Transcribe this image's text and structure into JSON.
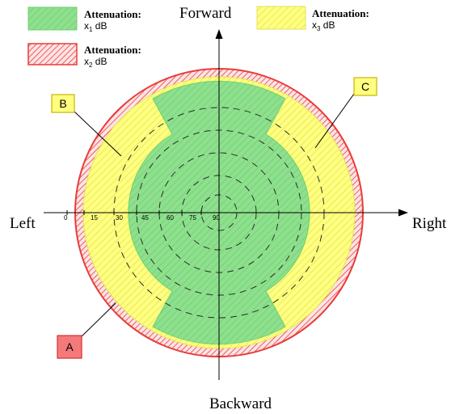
{
  "directions": {
    "forward": "Forward",
    "backward": "Backward",
    "left": "Left",
    "right": "Right"
  },
  "legend": [
    {
      "id": "x1",
      "title": "Attenuation:",
      "var": "x",
      "sub": "1",
      "unit": " dB",
      "fill": "#8ee08e",
      "hatch": "#5cc45c"
    },
    {
      "id": "x2",
      "title": "Attenuation:",
      "var": "x",
      "sub": "2",
      "unit": " dB",
      "fill": "#ffe4e4",
      "hatch": "#e83c3c"
    },
    {
      "id": "x3",
      "title": "Attenuation:",
      "var": "x",
      "sub": "3",
      "unit": " dB",
      "fill": "#ffff80",
      "hatch": "#d8d84a"
    }
  ],
  "ticks": [
    "0",
    "15",
    "30",
    "45",
    "60",
    "75",
    "90"
  ],
  "callouts": {
    "a": {
      "label": "A",
      "fill": "#f47a7a",
      "stroke": "#d43030"
    },
    "b": {
      "label": "B",
      "fill": "#ffff80",
      "stroke": "#c8b400"
    },
    "c": {
      "label": "C",
      "fill": "#ffff80",
      "stroke": "#c8b400"
    }
  },
  "colors": {
    "green_fill": "#8ee08e",
    "green_hatch": "#5cc45c",
    "yellow_fill": "#ffff80",
    "yellow_hatch": "#d8d84a",
    "red_ring": "#e83c3c",
    "red_bg": "#ffe4e4"
  }
}
